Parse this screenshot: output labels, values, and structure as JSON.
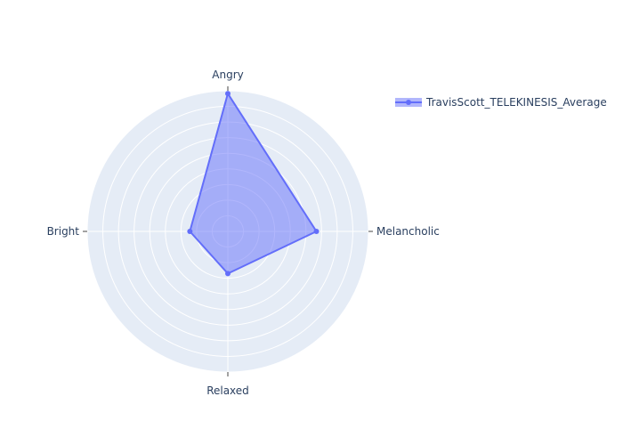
{
  "chart_data": {
    "type": "radar",
    "axes": [
      "Angry",
      "Melancholic",
      "Relaxed",
      "Bright"
    ],
    "series": [
      {
        "name": "TravisScott_TELEKINESIS_Average",
        "values": [
          0.98,
          0.63,
          0.3,
          0.27
        ]
      }
    ],
    "rlim": [
      0,
      1
    ],
    "grid": true,
    "legend": "top-right",
    "colors": {
      "line": "#636efa",
      "fill": "rgba(99,110,250,0.5)",
      "background": "#e5ecf6",
      "grid": "#ffffff"
    }
  }
}
